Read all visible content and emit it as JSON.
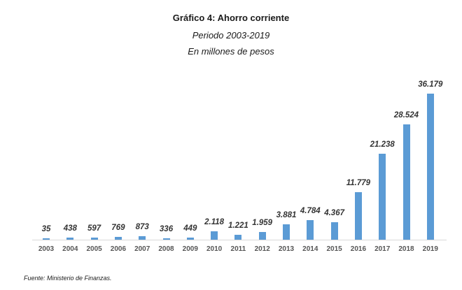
{
  "chart_data": {
    "type": "bar",
    "title": "Gráfico 4: Ahorro corriente",
    "subtitle": [
      "Periodo 2003-2019",
      "En millones de pesos"
    ],
    "xlabel": "",
    "ylabel": "",
    "categories": [
      "2003",
      "2004",
      "2005",
      "2006",
      "2007",
      "2008",
      "2009",
      "2010",
      "2011",
      "2012",
      "2013",
      "2014",
      "2015",
      "2016",
      "2017",
      "2018",
      "2019"
    ],
    "values": [
      35,
      438,
      597,
      769,
      873,
      336,
      449,
      2118,
      1221,
      1959,
      3881,
      4784,
      4367,
      11779,
      21238,
      28524,
      36179
    ],
    "value_labels": [
      "35",
      "438",
      "597",
      "769",
      "873",
      "336",
      "449",
      "2.118",
      "1.221",
      "1.959",
      "3.881",
      "4.784",
      "4.367",
      "11.779",
      "21.238",
      "28.524",
      "36.179"
    ],
    "ylim": [
      0,
      37000
    ],
    "grid": false,
    "legend": null,
    "bar_color": "#5b9bd5",
    "source": "Fuente: Ministerio de Finanzas."
  }
}
